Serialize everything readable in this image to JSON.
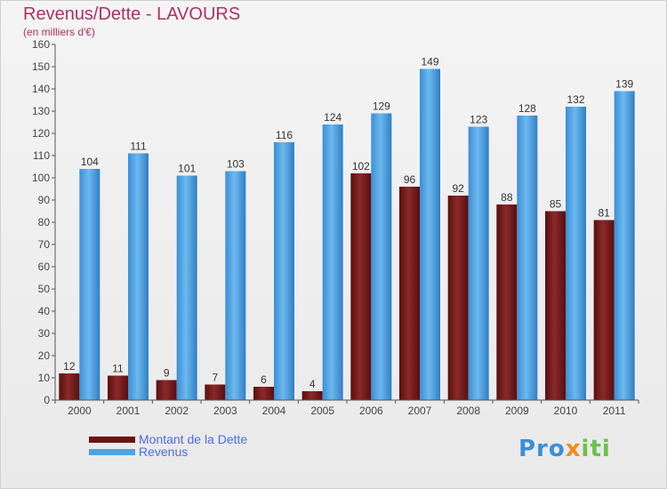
{
  "chart_data": {
    "type": "bar",
    "title": "Revenus/Dette - LAVOURS",
    "subtitle": "(en milliers d'€)",
    "categories": [
      "2000",
      "2001",
      "2002",
      "2003",
      "2004",
      "2005",
      "2006",
      "2007",
      "2008",
      "2009",
      "2010",
      "2011"
    ],
    "series": [
      {
        "name": "Montant de la Dette",
        "color": "#7a1a1a",
        "values": [
          12,
          11,
          9,
          7,
          6,
          4,
          102,
          96,
          92,
          88,
          85,
          81
        ]
      },
      {
        "name": "Revenus",
        "color": "#4fa3e3",
        "values": [
          104,
          111,
          101,
          103,
          116,
          124,
          129,
          149,
          123,
          128,
          132,
          139
        ]
      }
    ],
    "ylim": [
      0,
      160
    ],
    "yticks": [
      0,
      10,
      20,
      30,
      40,
      50,
      60,
      70,
      80,
      90,
      100,
      110,
      120,
      130,
      140,
      150,
      160
    ],
    "grid": false,
    "legend_position": "bottom-left"
  },
  "logo": {
    "text_1": "Pro",
    "text_2": "x",
    "text_3": "iti"
  }
}
